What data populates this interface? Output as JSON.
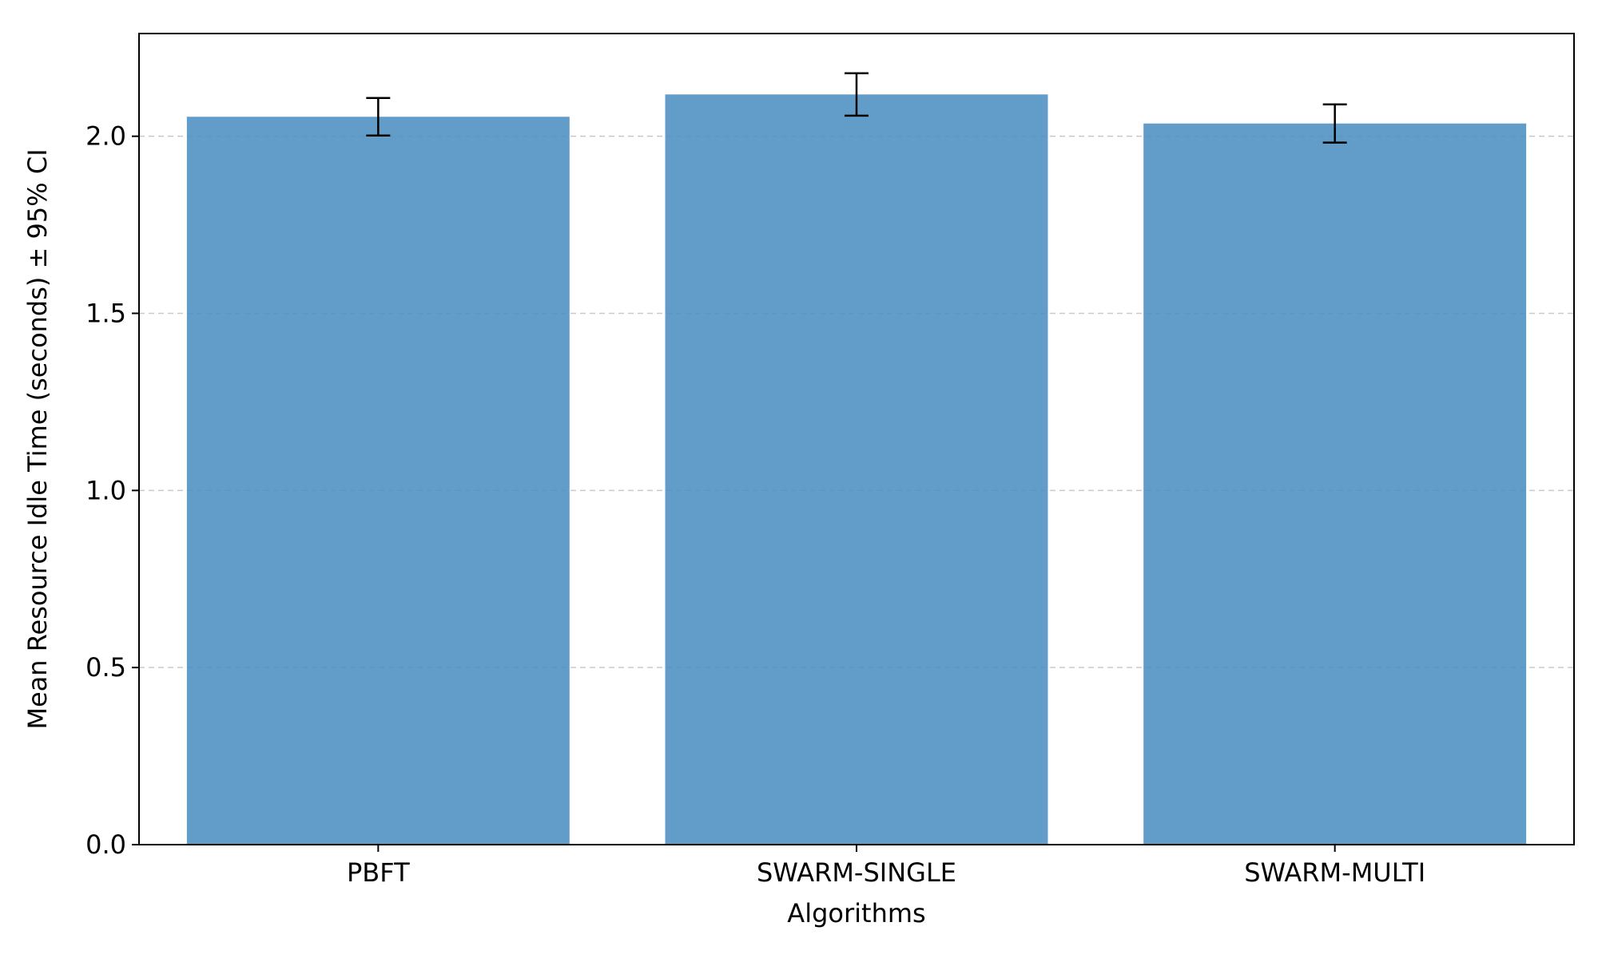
{
  "chart_data": {
    "type": "bar",
    "title": "",
    "xlabel": "Algorithms",
    "ylabel": "Mean Resource Idle Time (seconds) ± 95% CI",
    "categories": [
      "PBFT",
      "SWARM-SINGLE",
      "SWARM-MULTI"
    ],
    "values": [
      2.055,
      2.118,
      2.036
    ],
    "error": [
      0.053,
      0.06,
      0.054
    ],
    "ylim": [
      0,
      2.29
    ],
    "yticks": [
      0.0,
      0.5,
      1.0,
      1.5,
      2.0
    ],
    "ytick_labels": [
      "0.0",
      "0.5",
      "1.0",
      "1.5",
      "2.0"
    ],
    "grid": "y-dashed",
    "legend": "none",
    "colors": {
      "bar": "#4C8EC2",
      "error_bar": "#000000",
      "grid": "#C9C9C9",
      "axes": "#000000"
    }
  }
}
